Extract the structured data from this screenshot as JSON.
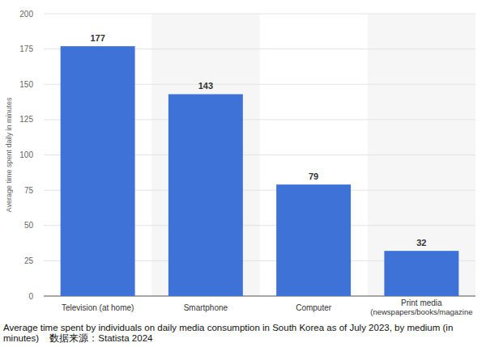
{
  "chart_data": {
    "type": "bar",
    "title": "Average time spent by individuals on daily media consumption in South Korea as of July 2023, by medium (in minutes)",
    "source": "数据来源：Statista 2024",
    "y_label": "Average time spent daily in minutes",
    "categories": [
      "Television (at home)",
      "Smartphone",
      "Computer",
      "Print media (newspapers/books/magazine"
    ],
    "values": [
      177,
      143,
      79,
      32
    ],
    "color": "#3e72d7",
    "ylim": [
      0,
      200
    ],
    "yticks": [
      0,
      25,
      50,
      75,
      100,
      125,
      150,
      175,
      200
    ],
    "grid": true,
    "data_labels": true
  }
}
